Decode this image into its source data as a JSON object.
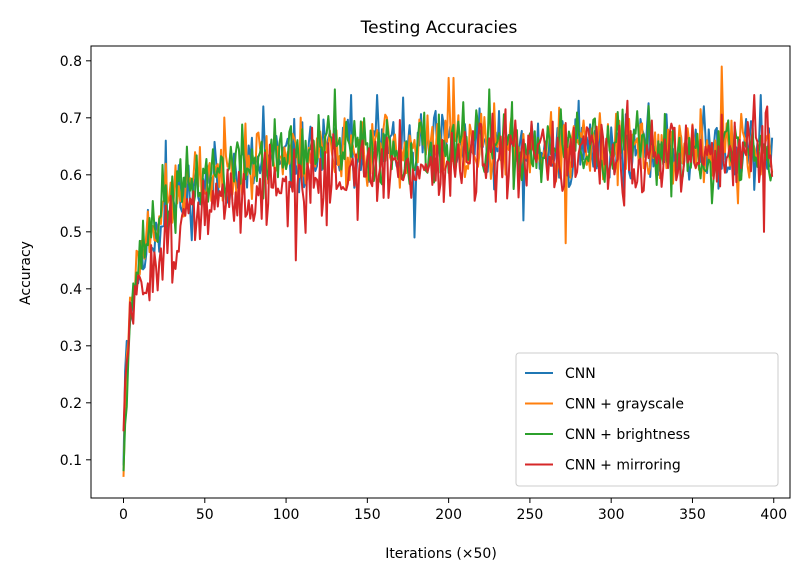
{
  "chart_data": {
    "type": "line",
    "title": "Testing Accuracies",
    "xlabel": "Iterations (×50)",
    "ylabel": "Accuracy",
    "xlim": [
      -20,
      410
    ],
    "ylim": [
      0.033,
      0.826
    ],
    "xticks": [
      0,
      50,
      100,
      150,
      200,
      250,
      300,
      350,
      400
    ],
    "yticks": [
      0.1,
      0.2,
      0.3,
      0.4,
      0.5,
      0.6,
      0.7,
      0.8
    ],
    "grid": false,
    "legend_position": "lower right",
    "n_points": 400,
    "series": [
      {
        "name": "CNN",
        "color": "#1f77b4",
        "seed": 11,
        "anchors": [
          [
            0,
            0.09
          ],
          [
            1,
            0.28
          ],
          [
            4,
            0.35
          ],
          [
            8,
            0.42
          ],
          [
            15,
            0.48
          ],
          [
            25,
            0.53
          ],
          [
            40,
            0.57
          ],
          [
            60,
            0.6
          ],
          [
            90,
            0.62
          ],
          [
            130,
            0.64
          ],
          [
            180,
            0.645
          ],
          [
            250,
            0.645
          ],
          [
            320,
            0.645
          ],
          [
            399,
            0.645
          ]
        ],
        "noise": 0.04,
        "events": [
          [
            26,
            0.66
          ],
          [
            86,
            0.72
          ],
          [
            140,
            0.74
          ],
          [
            156,
            0.74
          ],
          [
            179,
            0.49
          ],
          [
            246,
            0.52
          ],
          [
            280,
            0.73
          ],
          [
            392,
            0.74
          ]
        ]
      },
      {
        "name": "CNN + grayscale",
        "color": "#ff7f0e",
        "seed": 23,
        "anchors": [
          [
            0,
            0.07
          ],
          [
            1,
            0.2
          ],
          [
            4,
            0.38
          ],
          [
            8,
            0.44
          ],
          [
            15,
            0.5
          ],
          [
            25,
            0.55
          ],
          [
            40,
            0.58
          ],
          [
            60,
            0.61
          ],
          [
            90,
            0.63
          ],
          [
            130,
            0.645
          ],
          [
            180,
            0.65
          ],
          [
            250,
            0.645
          ],
          [
            320,
            0.645
          ],
          [
            399,
            0.645
          ]
        ],
        "noise": 0.04,
        "events": [
          [
            75,
            0.69
          ],
          [
            200,
            0.77
          ],
          [
            203,
            0.77
          ],
          [
            272,
            0.48
          ],
          [
            368,
            0.79
          ],
          [
            378,
            0.55
          ]
        ]
      },
      {
        "name": "CNN + brightness",
        "color": "#2ca02c",
        "seed": 37,
        "anchors": [
          [
            0,
            0.08
          ],
          [
            1,
            0.18
          ],
          [
            4,
            0.35
          ],
          [
            8,
            0.43
          ],
          [
            15,
            0.5
          ],
          [
            25,
            0.55
          ],
          [
            40,
            0.58
          ],
          [
            60,
            0.61
          ],
          [
            90,
            0.63
          ],
          [
            130,
            0.645
          ],
          [
            180,
            0.645
          ],
          [
            250,
            0.645
          ],
          [
            320,
            0.645
          ],
          [
            399,
            0.64
          ]
        ],
        "noise": 0.04,
        "events": [
          [
            130,
            0.75
          ],
          [
            225,
            0.75
          ],
          [
            362,
            0.55
          ],
          [
            398,
            0.59
          ]
        ]
      },
      {
        "name": "CNN + mirroring",
        "color": "#d62728",
        "seed": 51,
        "anchors": [
          [
            0,
            0.15
          ],
          [
            1,
            0.22
          ],
          [
            4,
            0.35
          ],
          [
            8,
            0.38
          ],
          [
            15,
            0.43
          ],
          [
            25,
            0.48
          ],
          [
            40,
            0.52
          ],
          [
            60,
            0.55
          ],
          [
            90,
            0.58
          ],
          [
            130,
            0.6
          ],
          [
            180,
            0.615
          ],
          [
            250,
            0.625
          ],
          [
            320,
            0.63
          ],
          [
            399,
            0.64
          ]
        ],
        "noise": 0.045,
        "events": [
          [
            106,
            0.45
          ],
          [
            310,
            0.73
          ],
          [
            388,
            0.74
          ],
          [
            394,
            0.5
          ],
          [
            396,
            0.72
          ]
        ]
      }
    ]
  }
}
